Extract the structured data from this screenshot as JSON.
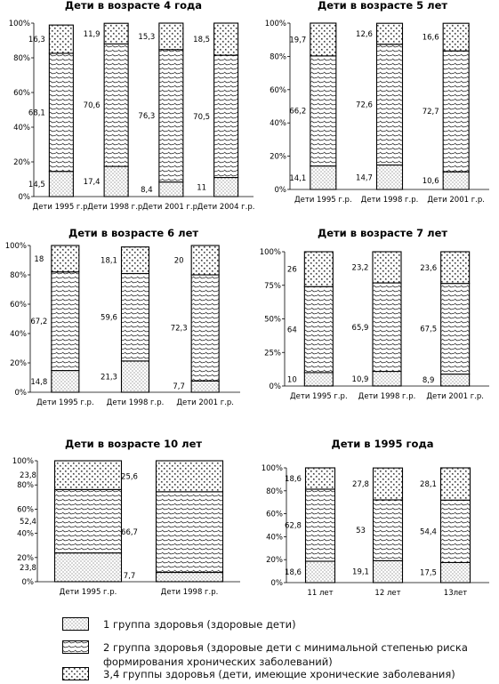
{
  "colors": {
    "bar_outline": "#000000",
    "pattern_ink": "#222222",
    "background": "#ffffff"
  },
  "legend": {
    "items": [
      {
        "label": "1 группа здоровья (здоровые дети)",
        "pattern": "dots"
      },
      {
        "label": "2 группа здоровья (здоровые дети с минимальной степенью риска формирования хронических заболеваний)",
        "pattern": "hatch"
      },
      {
        "label": "3,4 группы здоровья (дети, имеющие хронические заболевания)",
        "pattern": "cross"
      }
    ]
  },
  "chart_data": [
    {
      "type": "bar",
      "stacked": true,
      "title": "Дети в возрасте 4 года",
      "categories": [
        "Дети 1995 г.р.",
        "Дети 1998 г.р.",
        "Дети 2001 г.р.",
        "Дети 2004 г.р."
      ],
      "series": [
        {
          "values": [
            14.5,
            17.4,
            8.4,
            11
          ]
        },
        {
          "values": [
            68.1,
            70.6,
            76.3,
            70.5
          ]
        },
        {
          "values": [
            16.3,
            11.9,
            15.3,
            18.5
          ]
        }
      ],
      "ylim": [
        0,
        100
      ],
      "yticks": [
        "0%",
        "20%",
        "40%",
        "60%",
        "80%",
        "100%"
      ]
    },
    {
      "type": "bar",
      "stacked": true,
      "title": "Дети в возрасте 5 лет",
      "categories": [
        "Дети 1995 г.р.",
        "Дети 1998 г.р.",
        "Дети 2001 г.р."
      ],
      "series": [
        {
          "values": [
            14.1,
            14.7,
            10.6
          ]
        },
        {
          "values": [
            66.2,
            72.6,
            72.7
          ]
        },
        {
          "values": [
            19.7,
            12.6,
            16.6
          ]
        }
      ],
      "ylim": [
        0,
        100
      ],
      "yticks": [
        "0%",
        "20%",
        "40%",
        "60%",
        "80%",
        "100%"
      ]
    },
    {
      "type": "bar",
      "stacked": true,
      "title": "Дети в возрасте 6 лет",
      "categories": [
        "Дети 1995 г.р.",
        "Дети 1998 г.р.",
        "Дети 2001 г.р."
      ],
      "series": [
        {
          "values": [
            14.8,
            21.3,
            7.7
          ]
        },
        {
          "values": [
            67.2,
            59.6,
            72.3
          ]
        },
        {
          "values": [
            18,
            18.1,
            20
          ]
        }
      ],
      "ylim": [
        0,
        100
      ],
      "yticks": [
        "0%",
        "20%",
        "40%",
        "60%",
        "80%",
        "100%"
      ]
    },
    {
      "type": "bar",
      "stacked": true,
      "title": "Дети в возрасте 7 лет",
      "categories": [
        "Дети 1995 г.р.",
        "Дети 1998 г.р.",
        "Дети 2001 г.р."
      ],
      "series": [
        {
          "values": [
            10,
            10.9,
            8.9
          ]
        },
        {
          "values": [
            64,
            65.9,
            67.5
          ]
        },
        {
          "values": [
            26,
            23.2,
            23.6
          ]
        }
      ],
      "ylim": [
        0,
        100
      ],
      "yticks": [
        "0%",
        "25%",
        "50%",
        "75%",
        "100%"
      ]
    },
    {
      "type": "bar",
      "stacked": true,
      "title": "Дети в возрасте 10 лет",
      "categories": [
        "Дети 1995 г.р.",
        "Дети 1998 г.р."
      ],
      "series": [
        {
          "values": [
            23.8,
            7.7
          ]
        },
        {
          "values": [
            52.4,
            66.7
          ]
        },
        {
          "values": [
            23.8,
            25.6
          ]
        }
      ],
      "ylim": [
        0,
        100
      ],
      "yticks": [
        "0%",
        "20%",
        "40%",
        "60%",
        "80%",
        "100%"
      ]
    },
    {
      "type": "bar",
      "stacked": true,
      "title": "Дети в 1995 года",
      "categories": [
        "11 лет",
        "12 лет",
        "13лет"
      ],
      "series": [
        {
          "values": [
            18.6,
            19.1,
            17.5
          ]
        },
        {
          "values": [
            62.8,
            53,
            54.4
          ]
        },
        {
          "values": [
            18.6,
            27.8,
            28.1
          ]
        }
      ],
      "ylim": [
        0,
        100
      ],
      "yticks": [
        "0%",
        "20%",
        "40%",
        "60%",
        "80%",
        "100%"
      ]
    }
  ]
}
